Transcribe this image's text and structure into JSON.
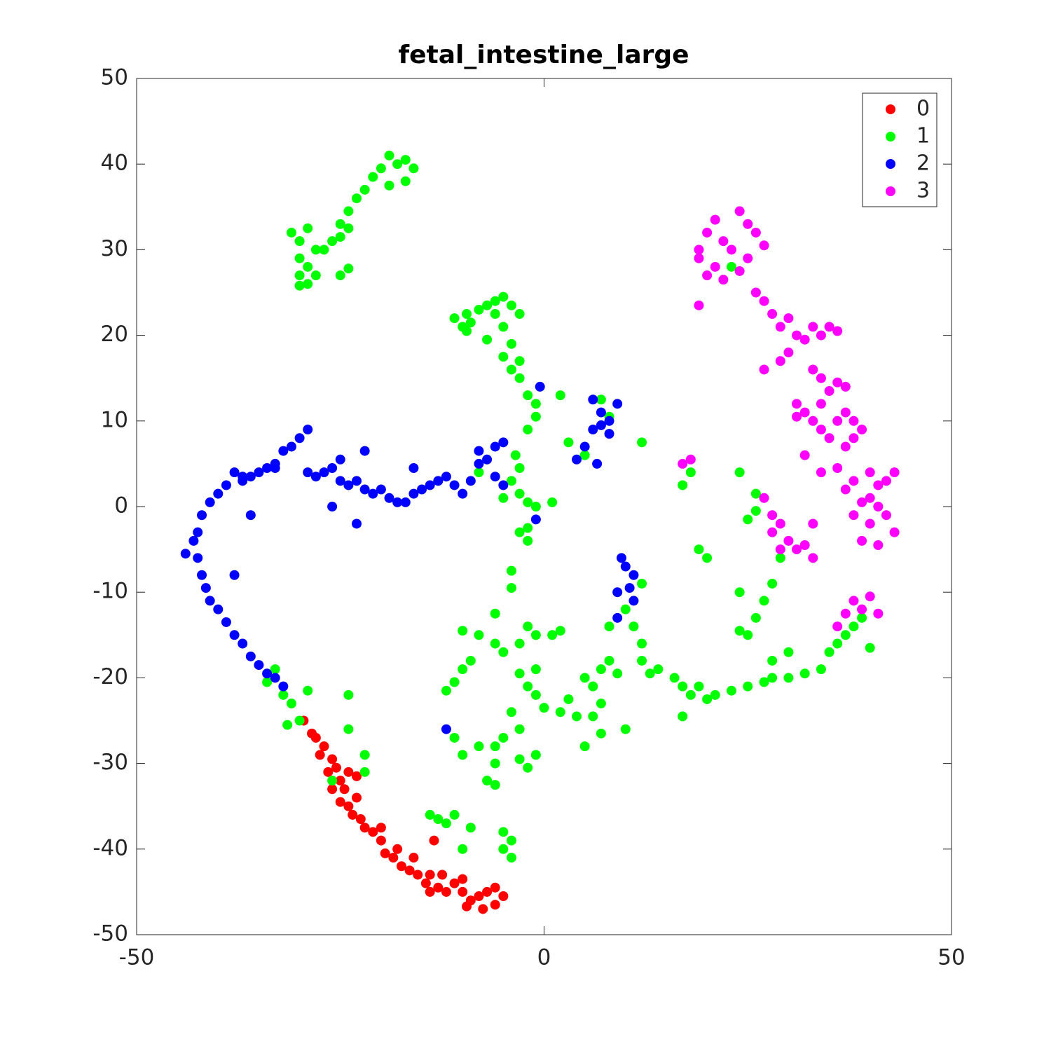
{
  "chart_data": {
    "type": "scatter",
    "title": "fetal_intestine_large",
    "xlim": [
      -50,
      50
    ],
    "ylim": [
      -50,
      50
    ],
    "xticks": [
      -50,
      0,
      50
    ],
    "yticks": [
      -50,
      -40,
      -30,
      -20,
      -10,
      0,
      10,
      20,
      30,
      40,
      50
    ],
    "legend": "top-right",
    "grid": false,
    "series": [
      {
        "name": "0",
        "color": "#ff0000",
        "x": [
          -29.5,
          -28.5,
          -28,
          -27,
          -27.5,
          -26,
          -26.5,
          -25.5,
          -25,
          -24.5,
          -26,
          -25,
          -24,
          -23,
          -23.5,
          -22.5,
          -22,
          -21,
          -20,
          -19.5,
          -18.5,
          -17.5,
          -16.5,
          -15.5,
          -14.5,
          -14,
          -13,
          -12,
          -11,
          -10,
          -9,
          -8,
          -7,
          -6,
          -5,
          -9.5,
          -7.5,
          -16,
          -14,
          -12.5,
          -10,
          -23,
          -24,
          -20,
          -18,
          -13.5,
          -6
        ],
        "y": [
          -25,
          -26.5,
          -27,
          -28,
          -29,
          -29.5,
          -31,
          -30.5,
          -32,
          -33,
          -33,
          -34.5,
          -35,
          -34,
          -36,
          -36.5,
          -37.5,
          -38,
          -39,
          -40.5,
          -41,
          -42,
          -42.5,
          -43,
          -44,
          -45,
          -44.5,
          -45,
          -44,
          -45,
          -46,
          -45.5,
          -45,
          -44.5,
          -45.5,
          -46.7,
          -47,
          -41,
          -43,
          -43,
          -43.5,
          -31.5,
          -31,
          -37.5,
          -40,
          -39,
          -46.5
        ]
      },
      {
        "name": "1",
        "color": "#00ff00",
        "x": [
          -31,
          -30,
          -29,
          -28,
          -30,
          -29,
          -30,
          -29,
          -30,
          -28,
          -27,
          -26,
          -25,
          -24,
          -23,
          -22,
          -21,
          -20,
          -19,
          -18,
          -17,
          -16,
          -19,
          -17,
          -24,
          -25,
          -24,
          -25,
          -11,
          -10,
          -9.5,
          -9,
          -8,
          -7,
          -6,
          -5,
          -4,
          -3,
          -6,
          -5,
          -4,
          -5,
          -3,
          -4,
          -3,
          -2,
          -1,
          -1,
          -2,
          2,
          -7,
          -9.5,
          -3.5,
          -3,
          -4,
          -3,
          -5,
          -2,
          -1,
          1,
          -2,
          -3,
          -2,
          3,
          5,
          7,
          8,
          12,
          -8,
          -4,
          -4,
          -6,
          -10,
          -8,
          -6,
          -9,
          -10,
          -11,
          -12,
          -5,
          -3,
          -2,
          -1,
          1,
          2,
          -3,
          -2,
          -1,
          -1,
          0,
          2,
          3,
          4,
          5,
          7,
          8,
          9,
          6,
          7,
          6,
          7,
          5,
          10,
          -4,
          -3,
          -5,
          -6,
          -8,
          -10,
          -11,
          -3,
          -1,
          -2,
          -6,
          -7,
          -6,
          -12,
          -11,
          -9,
          -10,
          -5,
          -4,
          -4,
          -5,
          -14,
          -13,
          -33,
          -32,
          -31,
          -30,
          -31.5,
          -29,
          -24,
          -24,
          -22,
          -22,
          -26,
          -34,
          10,
          11,
          12,
          12,
          13,
          14,
          16,
          17,
          18,
          19,
          20,
          21,
          23,
          25,
          27,
          28,
          30,
          32,
          34,
          35,
          36,
          37,
          38,
          39,
          40,
          30,
          28,
          25,
          24,
          26,
          27,
          28,
          29,
          24,
          25,
          26,
          26,
          18,
          17,
          24,
          19,
          20,
          12,
          8,
          17,
          23
        ],
        "y": [
          32,
          31,
          32.5,
          30,
          29,
          28,
          27,
          26,
          25.8,
          27,
          30,
          31,
          33,
          34.5,
          36,
          37,
          38.5,
          39.5,
          41,
          40,
          40.5,
          39.5,
          37.5,
          38,
          32.5,
          31.5,
          27.8,
          27,
          22,
          21,
          22.5,
          21.5,
          23,
          23.5,
          24,
          24.5,
          23.5,
          22.5,
          22.5,
          21,
          19,
          17.5,
          17,
          16,
          15,
          13,
          12,
          10.5,
          9,
          13,
          19.5,
          20.5,
          6,
          4.5,
          3,
          1.5,
          1,
          0.5,
          0,
          0.5,
          -2.5,
          -3,
          -4,
          7.5,
          6,
          12.5,
          10.5,
          7.5,
          4,
          -7.5,
          -9.5,
          -12.5,
          -14.5,
          -15,
          -16,
          -18,
          -19,
          -20.5,
          -21.5,
          -17,
          -16,
          -14,
          -15,
          -15,
          -14.5,
          -19.5,
          -21,
          -19,
          -22,
          -23.5,
          -24,
          -22.5,
          -24.5,
          -20,
          -19,
          -18,
          -19.5,
          -21,
          -23,
          -24.5,
          -26.5,
          -28,
          -26,
          -24,
          -26,
          -27,
          -28,
          -28,
          -29,
          -27,
          -29.5,
          -29,
          -30.5,
          -30,
          -32,
          -32.5,
          -37,
          -36,
          -37.5,
          -40,
          -38,
          -39,
          -41,
          -40,
          -36,
          -36.5,
          -19,
          -22,
          -23,
          -25,
          -25.5,
          -21.5,
          -22,
          -26,
          -29,
          -31,
          -32,
          -20.5,
          -12,
          -14,
          -16,
          -18,
          -19.5,
          -19,
          -20,
          -21,
          -22,
          -21,
          -22.5,
          -22,
          -21.5,
          -21,
          -20.5,
          -20,
          -20,
          -19.5,
          -19,
          -17,
          -16,
          -15,
          -14,
          -13,
          -16.5,
          -17,
          -18,
          -15,
          -14.5,
          -13,
          -11,
          -9,
          -6,
          -10,
          -1.5,
          -0.5,
          1.5,
          4,
          2.5,
          4,
          -5,
          -6,
          -9,
          -14,
          -24.5,
          28
        ]
      },
      {
        "name": "2",
        "color": "#0000ff",
        "x": [
          -29,
          -30,
          -31,
          -32,
          -33,
          -34,
          -35,
          -36,
          -37,
          -38,
          -39,
          -40,
          -41,
          -42,
          -42.5,
          -43,
          -42.5,
          -42,
          -41.5,
          -41,
          -40,
          -39,
          -38,
          -37,
          -36,
          -35,
          -34,
          -33,
          -32,
          -44,
          -38,
          -36,
          -29,
          -28,
          -27,
          -26,
          -25,
          -24,
          -23,
          -22,
          -21,
          -20,
          -19,
          -18,
          -17,
          -16,
          -15,
          -14,
          -13,
          -12,
          -11,
          -10,
          -9,
          -8,
          -7,
          -6,
          -5,
          -6,
          -5,
          -22,
          -25,
          -23,
          -16,
          -26,
          -8,
          -1,
          -0.5,
          6,
          7,
          8,
          6,
          8,
          7,
          5,
          4,
          6.5,
          9,
          9.5,
          10,
          11,
          10.5,
          9,
          9,
          11,
          -12,
          -33,
          -37
        ],
        "y": [
          9,
          8,
          7,
          6.5,
          5,
          4.5,
          4,
          3.5,
          3,
          4,
          2.5,
          1.5,
          0.5,
          -1,
          -3,
          -4,
          -6,
          -8,
          -9.5,
          -11,
          -12,
          -13.5,
          -15,
          -16,
          -17.5,
          -18.5,
          -19.5,
          -20,
          -21,
          -5.5,
          -8,
          -1,
          4,
          3.5,
          4,
          4.5,
          3,
          2.5,
          3,
          2,
          1.5,
          2,
          1,
          0.5,
          0.5,
          1.5,
          2,
          2.5,
          3,
          3.5,
          2.5,
          1.5,
          3,
          5,
          5.5,
          7,
          7.5,
          3.5,
          2.5,
          6.5,
          5.5,
          -2,
          4.5,
          0,
          6.5,
          -1.5,
          14,
          12.5,
          11,
          10,
          9,
          8.5,
          9.5,
          7,
          5.5,
          5,
          12,
          -6,
          -7,
          -8,
          -9.5,
          -10,
          -13,
          -11,
          -26,
          4.5,
          3.5
        ]
      },
      {
        "name": "3",
        "color": "#ff00ff",
        "x": [
          19,
          20,
          21,
          22,
          23,
          21,
          22,
          20,
          19,
          24,
          25,
          26,
          27,
          25,
          24,
          26,
          27,
          28,
          29,
          30,
          31,
          32,
          33,
          34,
          35,
          36,
          30,
          29,
          33,
          34,
          35,
          36,
          37,
          31,
          32,
          33,
          34,
          35,
          36,
          37,
          38,
          39,
          38,
          37,
          32,
          34,
          36,
          38,
          40,
          41,
          42,
          43,
          40,
          41,
          42,
          43,
          40,
          39,
          41,
          38,
          39,
          37,
          18,
          17,
          27,
          28,
          29,
          28,
          30,
          31,
          32,
          33,
          29,
          33,
          38,
          39,
          40,
          41,
          36,
          37,
          19,
          27,
          31,
          34
        ],
        "y": [
          30,
          32,
          33.5,
          31,
          30,
          28,
          26.5,
          27,
          29,
          34.5,
          33,
          32,
          30.5,
          29,
          27.5,
          25,
          24,
          22.5,
          21,
          22,
          20,
          19.5,
          21,
          20,
          21,
          20.5,
          18,
          17,
          16,
          15,
          13.5,
          14.5,
          14,
          12,
          11,
          10,
          9,
          8,
          10,
          11,
          10,
          9,
          8,
          7,
          6,
          4,
          4.5,
          3,
          4,
          2.5,
          3,
          4,
          1,
          0,
          -1,
          -3,
          -2,
          -4,
          -4.5,
          -1,
          0.5,
          2,
          5.5,
          5,
          1,
          -1,
          -2,
          -3,
          -4,
          -5,
          -4.5,
          -6,
          -5,
          -2,
          -11,
          -12,
          -10.5,
          -12.5,
          -14,
          -12.5,
          23.5,
          16,
          10.5,
          12
        ]
      }
    ]
  }
}
